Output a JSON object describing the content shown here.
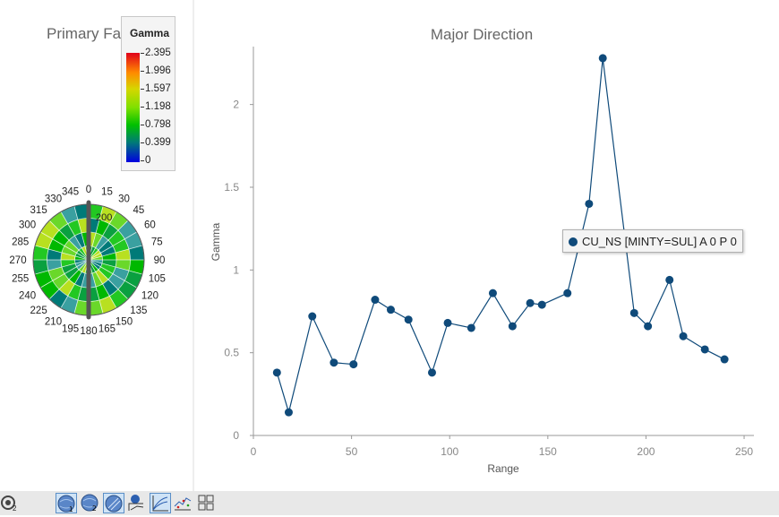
{
  "left_panel": {
    "title": "Primary Fa",
    "legend": {
      "title": "Gamma",
      "ticks": [
        "2.395",
        "1.996",
        "1.597",
        "1.198",
        "0.798",
        "0.399",
        "0"
      ]
    },
    "rose": {
      "angle_labels": [
        "0",
        "15",
        "30",
        "45",
        "60",
        "75",
        "90",
        "105",
        "120",
        "135",
        "150",
        "165",
        "180",
        "195",
        "210",
        "225",
        "240",
        "255",
        "270",
        "285",
        "300",
        "315",
        "330",
        "345"
      ],
      "center_label": "200"
    }
  },
  "chart_data": {
    "type": "line",
    "title": "Major Direction",
    "xlabel": "Range",
    "ylabel": "Gamma",
    "xlim": [
      0,
      255
    ],
    "ylim": [
      0,
      2.35
    ],
    "x_ticks": [
      "0",
      "50",
      "100",
      "150",
      "200",
      "250"
    ],
    "y_ticks": [
      "0",
      "0.5",
      "1",
      "1.5",
      "2"
    ],
    "grid": false,
    "series_color": "#0f4a7a",
    "series": [
      {
        "name": "CU_NS [MINTY=SUL] A 0 P 0",
        "x": [
          12,
          18,
          30,
          41,
          51,
          62,
          70,
          79,
          91,
          99,
          111,
          122,
          132,
          141,
          147,
          160,
          171,
          178,
          194,
          201,
          212,
          219,
          230,
          240
        ],
        "y": [
          0.38,
          0.14,
          0.72,
          0.44,
          0.43,
          0.82,
          0.76,
          0.7,
          0.38,
          0.68,
          0.65,
          0.86,
          0.66,
          0.8,
          0.79,
          0.86,
          1.4,
          2.28,
          0.74,
          0.66,
          0.94,
          0.6,
          0.52,
          0.46
        ]
      }
    ]
  },
  "tooltip": {
    "text": "CU_NS [MINTY=SUL] A 0 P 0"
  },
  "toolbar": {
    "buttons": [
      {
        "name": "map-settings-icon",
        "active": false
      },
      {
        "name": "globe-1-icon",
        "active": true
      },
      {
        "name": "globe-2-icon",
        "active": false
      },
      {
        "name": "globe-contour-icon",
        "active": true
      },
      {
        "name": "point-profile-icon",
        "active": false
      },
      {
        "name": "variogram-chart-icon",
        "active": true
      },
      {
        "name": "scatter-chart-icon",
        "active": false
      },
      {
        "name": "grid-layout-icon",
        "active": false
      }
    ]
  }
}
